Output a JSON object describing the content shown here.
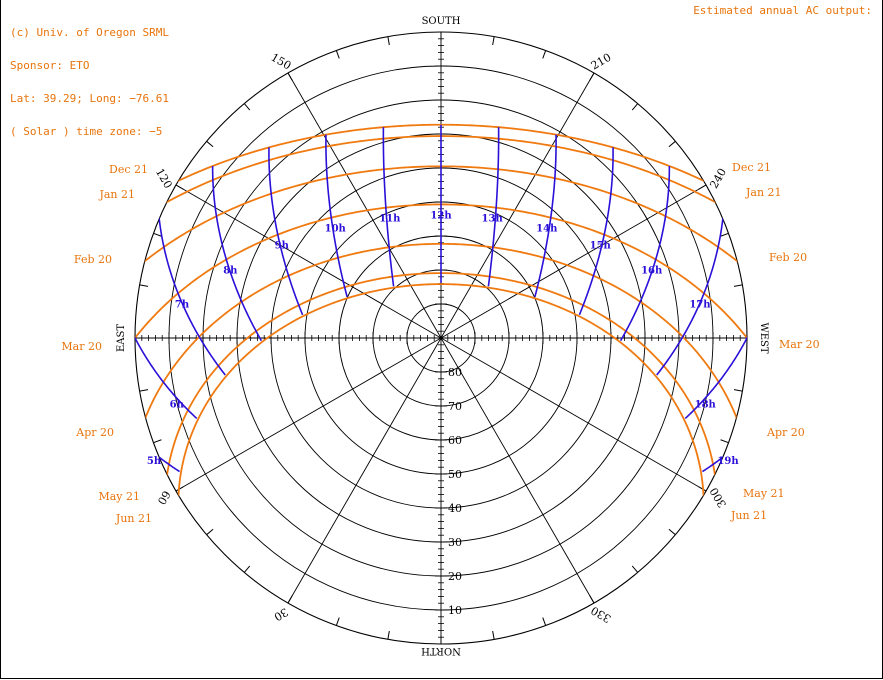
{
  "header": {
    "lines": [
      "(c) Univ. of Oregon SRML",
      "Sponsor: ETO",
      "Lat: 39.29; Long: −76.61",
      "( Solar ) time zone: −5"
    ],
    "right_label": "Estimated annual AC output:"
  },
  "colors": {
    "date_curves": "#f07a10",
    "hour_curves": "#2a10d8",
    "grid": "#000000",
    "labels": "#e8740c"
  },
  "chart_data": {
    "type": "polar",
    "projection": "altitude-azimuth sun path",
    "latitude": 39.29,
    "longitude": -76.61,
    "cardinal": {
      "south": "SOUTH",
      "north": "NORTH",
      "east": "EAST",
      "west": "WEST"
    },
    "azimuth_labels": [
      {
        "az": 150,
        "text": "150"
      },
      {
        "az": 210,
        "text": "210"
      },
      {
        "az": 120,
        "text": "120"
      },
      {
        "az": 240,
        "text": "240"
      },
      {
        "az": 60,
        "text": "60"
      },
      {
        "az": 300,
        "text": "300"
      },
      {
        "az": 30,
        "text": "30"
      },
      {
        "az": 330,
        "text": "330"
      }
    ],
    "altitude_circles": [
      10,
      20,
      30,
      40,
      50,
      60,
      70,
      80
    ],
    "altitude_labels": [
      {
        "alt": 80,
        "text": "80"
      },
      {
        "alt": 70,
        "text": "70"
      },
      {
        "alt": 60,
        "text": "60"
      },
      {
        "alt": 50,
        "text": "50"
      },
      {
        "alt": 40,
        "text": "40"
      },
      {
        "alt": 30,
        "text": "30"
      },
      {
        "alt": 20,
        "text": "20"
      },
      {
        "alt": 10,
        "text": "10"
      }
    ],
    "date_curves": [
      {
        "name": "Dec 21",
        "declination": -23.44,
        "side": "both"
      },
      {
        "name": "Jan 21",
        "declination": -20.1,
        "side": "both"
      },
      {
        "name": "Feb 20",
        "declination": -11.2,
        "side": "both"
      },
      {
        "name": "Mar 20",
        "declination": 0.0,
        "side": "both"
      },
      {
        "name": "Apr 20",
        "declination": 11.6,
        "side": "both"
      },
      {
        "name": "May 21",
        "declination": 20.2,
        "side": "both"
      },
      {
        "name": "Jun 21",
        "declination": 23.44,
        "side": "both"
      }
    ],
    "hour_labels": [
      {
        "hour": 5,
        "text": "5h"
      },
      {
        "hour": 6,
        "text": "6h"
      },
      {
        "hour": 7,
        "text": "7h"
      },
      {
        "hour": 8,
        "text": "8h"
      },
      {
        "hour": 9,
        "text": "9h"
      },
      {
        "hour": 10,
        "text": "10h"
      },
      {
        "hour": 11,
        "text": "11h"
      },
      {
        "hour": 12,
        "text": "12h"
      },
      {
        "hour": 13,
        "text": "13h"
      },
      {
        "hour": 14,
        "text": "14h"
      },
      {
        "hour": 15,
        "text": "15h"
      },
      {
        "hour": 16,
        "text": "16h"
      },
      {
        "hour": 17,
        "text": "17h"
      },
      {
        "hour": 18,
        "text": "18h"
      },
      {
        "hour": 19,
        "text": "19h"
      }
    ]
  }
}
